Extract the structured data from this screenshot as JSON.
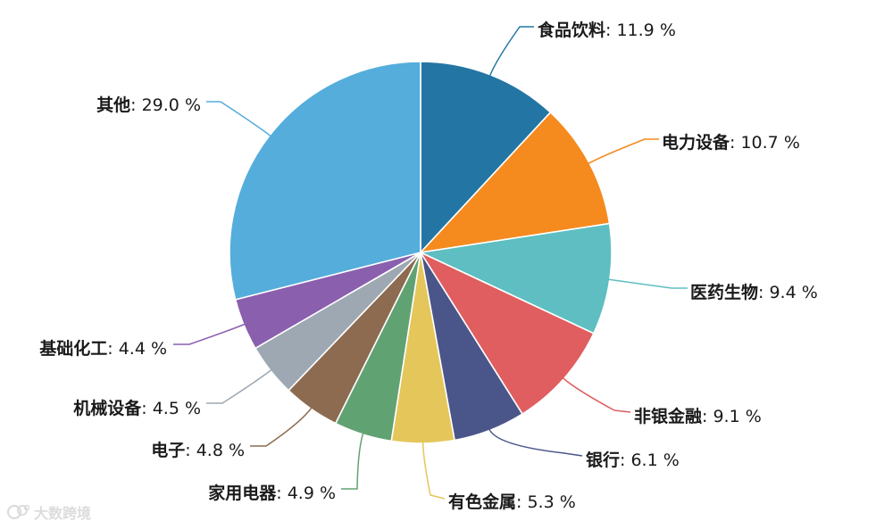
{
  "chart_data": {
    "type": "pie",
    "start": "top",
    "direction": "clockwise",
    "title": "",
    "slices": [
      {
        "label": "食品饮料",
        "value": 11.9,
        "display": "11.9 %",
        "color": "#2376A3"
      },
      {
        "label": "电力设备",
        "value": 10.7,
        "display": "10.7 %",
        "color": "#F58A1F"
      },
      {
        "label": "医药生物",
        "value": 9.4,
        "display": "9.4 %",
        "color": "#5EBEC1"
      },
      {
        "label": "非银金融",
        "value": 9.1,
        "display": "9.1 %",
        "color": "#E05E5F"
      },
      {
        "label": "银行",
        "value": 6.1,
        "display": "6.1 %",
        "color": "#4A568A"
      },
      {
        "label": "有色金属",
        "value": 5.3,
        "display": "5.3 %",
        "color": "#E5C65A"
      },
      {
        "label": "家用电器",
        "value": 4.9,
        "display": "4.9 %",
        "color": "#61A273"
      },
      {
        "label": "电子",
        "value": 4.8,
        "display": "4.8 %",
        "color": "#8C6B50"
      },
      {
        "label": "机械设备",
        "value": 4.5,
        "display": "4.5 %",
        "color": "#9EA8B2"
      },
      {
        "label": "基础化工",
        "value": 4.4,
        "display": "4.4 %",
        "color": "#8A5FAE"
      },
      {
        "label": "其他",
        "value": 29.0,
        "display": "29.0 %",
        "color": "#55ADDC"
      }
    ]
  },
  "watermark": {
    "text": "大数跨境",
    "color": "#d9d9d9"
  }
}
